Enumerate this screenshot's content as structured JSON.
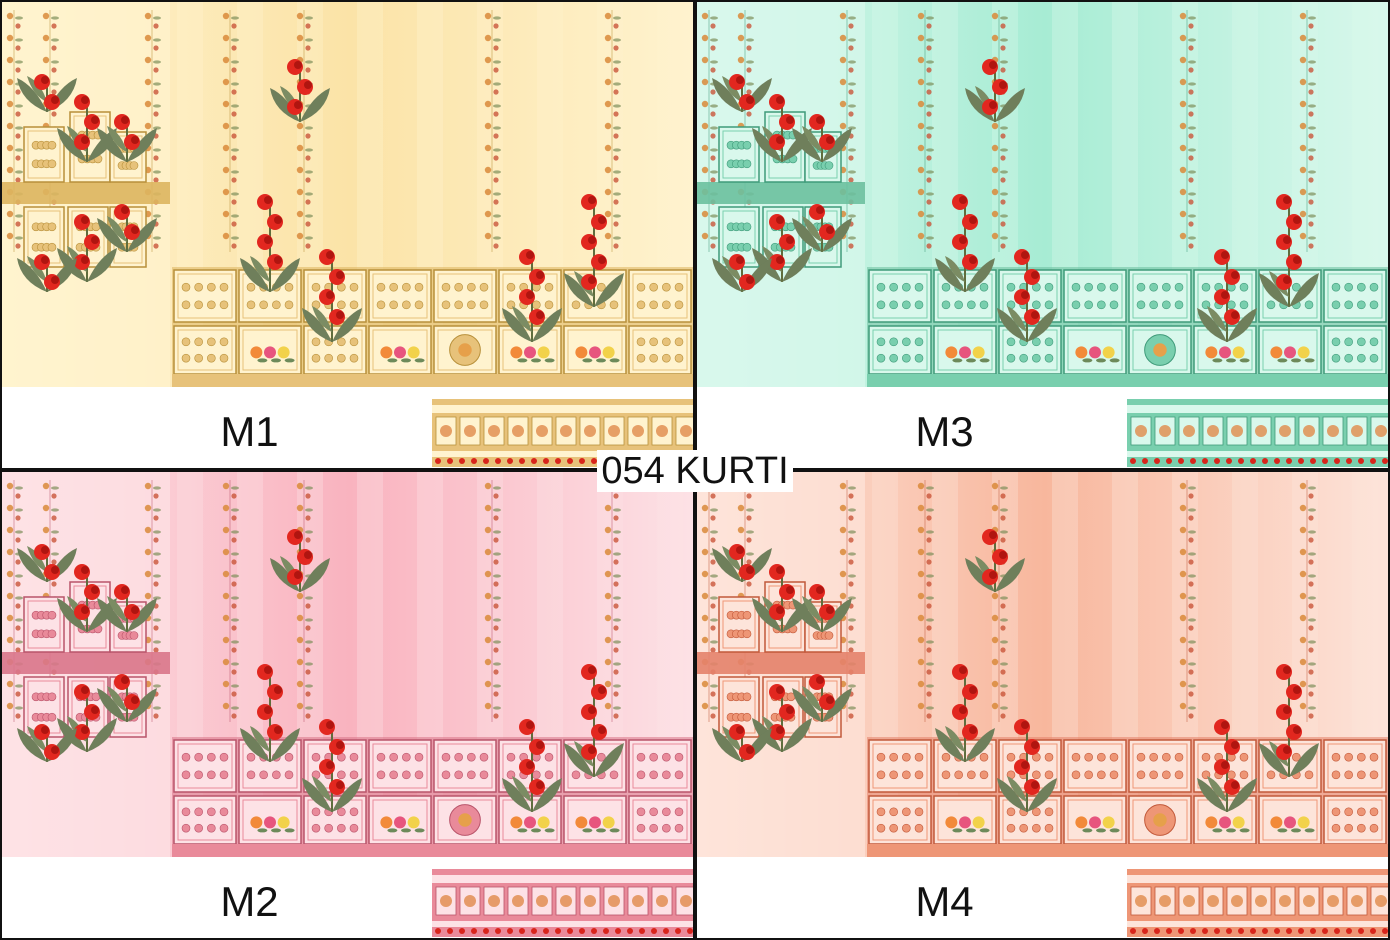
{
  "title": "054 KURTI",
  "variants": [
    {
      "label": "M1",
      "colors": {
        "bg": "#fbe3a7",
        "light": "#fff3cf",
        "mid": "#e7c27a",
        "dark": "#b8903a",
        "panel": "#ddb55f"
      }
    },
    {
      "label": "M3",
      "colors": {
        "bg": "#a7ecd4",
        "light": "#d9f8ec",
        "mid": "#79cfae",
        "dark": "#3f9b7a",
        "panel": "#6cc09f"
      }
    },
    {
      "label": "M2",
      "colors": {
        "bg": "#f9b3bf",
        "light": "#fde2e6",
        "mid": "#e98a9a",
        "dark": "#b9546a",
        "panel": "#d97589"
      }
    },
    {
      "label": "M4",
      "colors": {
        "bg": "#f8b79d",
        "light": "#fde4da",
        "mid": "#ee9676",
        "dark": "#c2593a",
        "panel": "#e4826a"
      }
    }
  ]
}
